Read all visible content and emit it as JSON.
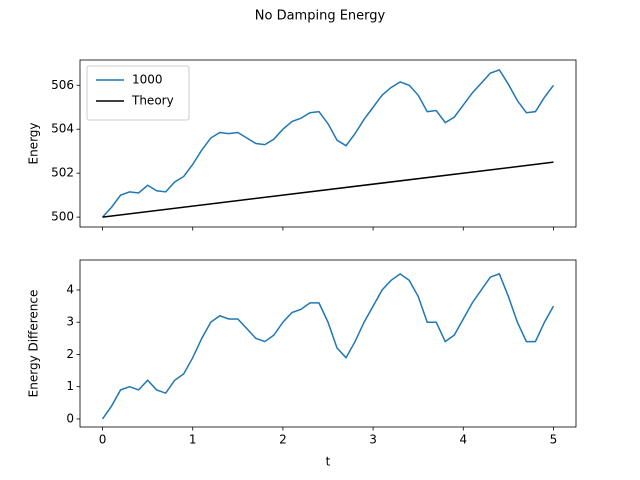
{
  "title": "No Damping Energy",
  "chart_data": [
    {
      "type": "line",
      "ylabel": "Energy",
      "x": [
        0,
        0.1,
        0.2,
        0.3,
        0.4,
        0.5,
        0.6,
        0.7,
        0.8,
        0.9,
        1,
        1.1,
        1.2,
        1.3,
        1.4,
        1.5,
        1.6,
        1.7,
        1.8,
        1.9,
        2,
        2.1,
        2.2,
        2.3,
        2.4,
        2.5,
        2.6,
        2.7,
        2.8,
        2.9,
        3,
        3.1,
        3.2,
        3.3,
        3.4,
        3.5,
        3.6,
        3.7,
        3.8,
        3.9,
        4,
        4.1,
        4.2,
        4.3,
        4.4,
        4.5,
        4.6,
        4.7,
        4.8,
        4.9,
        5
      ],
      "series": [
        {
          "name": "1000",
          "color": "#1f77b4",
          "values": [
            500,
            500.45,
            501,
            501.15,
            501.1,
            501.45,
            501.2,
            501.15,
            501.6,
            501.85,
            502.4,
            503.05,
            503.6,
            503.85,
            503.8,
            503.85,
            503.6,
            503.35,
            503.3,
            503.55,
            504,
            504.35,
            504.5,
            504.75,
            504.8,
            504.25,
            503.5,
            503.25,
            503.8,
            504.45,
            505,
            505.55,
            505.9,
            506.15,
            506,
            505.55,
            504.8,
            504.85,
            504.3,
            504.55,
            505.1,
            505.65,
            506.1,
            506.55,
            506.7,
            506.05,
            505.3,
            504.75,
            504.8,
            505.45,
            506
          ]
        },
        {
          "name": "Theory",
          "color": "#000000",
          "x": [
            0,
            5
          ],
          "values": [
            500,
            502.5
          ]
        }
      ],
      "xlim": [
        -0.25,
        5.25
      ],
      "xticks": [
        0,
        1,
        2,
        3,
        4,
        5
      ],
      "show_xtick_labels": false,
      "ylim": [
        499.55,
        507.15
      ],
      "yticks": [
        500,
        502,
        504,
        506
      ],
      "legend": "upper left"
    },
    {
      "type": "line",
      "ylabel": "Energy Difference",
      "xlabel": "t",
      "x": [
        0,
        0.1,
        0.2,
        0.3,
        0.4,
        0.5,
        0.6,
        0.7,
        0.8,
        0.9,
        1,
        1.1,
        1.2,
        1.3,
        1.4,
        1.5,
        1.6,
        1.7,
        1.8,
        1.9,
        2,
        2.1,
        2.2,
        2.3,
        2.4,
        2.5,
        2.6,
        2.7,
        2.8,
        2.9,
        3,
        3.1,
        3.2,
        3.3,
        3.4,
        3.5,
        3.6,
        3.7,
        3.8,
        3.9,
        4,
        4.1,
        4.2,
        4.3,
        4.4,
        4.5,
        4.6,
        4.7,
        4.8,
        4.9,
        5
      ],
      "series": [
        {
          "color": "#1f77b4",
          "values": [
            0,
            0.4,
            0.9,
            1,
            0.9,
            1.2,
            0.9,
            0.8,
            1.2,
            1.4,
            1.9,
            2.5,
            3,
            3.2,
            3.1,
            3.1,
            2.8,
            2.5,
            2.4,
            2.6,
            3,
            3.3,
            3.4,
            3.6,
            3.6,
            3,
            2.2,
            1.9,
            2.4,
            3,
            3.5,
            4,
            4.3,
            4.5,
            4.3,
            3.8,
            3,
            3,
            2.4,
            2.6,
            3.1,
            3.6,
            4,
            4.4,
            4.5,
            3.8,
            3,
            2.4,
            2.4,
            3,
            3.5
          ]
        }
      ],
      "xlim": [
        -0.25,
        5.25
      ],
      "xticks": [
        0,
        1,
        2,
        3,
        4,
        5
      ],
      "show_xtick_labels": true,
      "ylim": [
        -0.25,
        4.93
      ],
      "yticks": [
        0,
        1,
        2,
        3,
        4
      ]
    }
  ]
}
